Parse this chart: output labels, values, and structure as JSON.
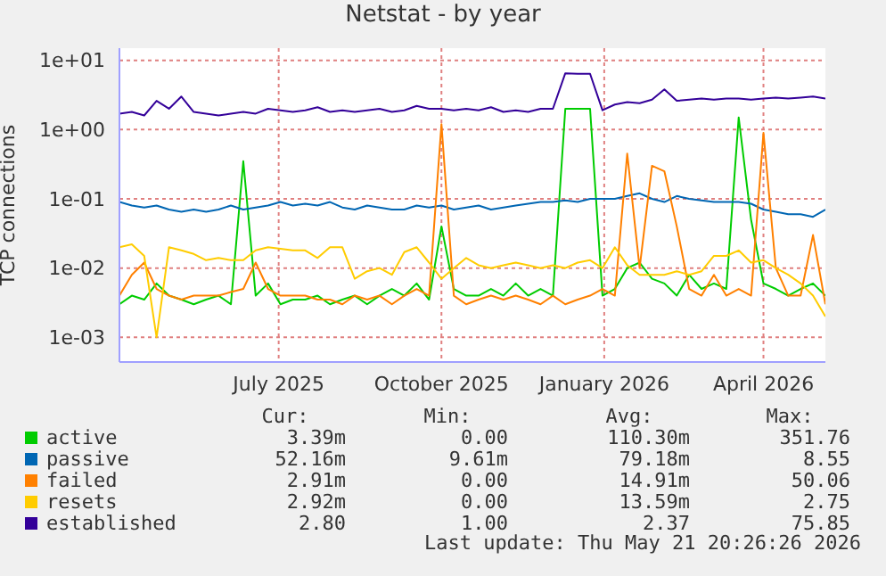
{
  "chart_data": {
    "type": "line",
    "title": "Netstat - by year",
    "ylabel": "TCP connections",
    "log": "y",
    "grid": true,
    "legend": "bottom",
    "marker": "none",
    "line_style": "solid",
    "x": [
      "2025-04-17",
      "2025-04-24",
      "2025-05-01",
      "2025-05-08",
      "2025-05-15",
      "2025-05-22",
      "2025-05-29",
      "2025-06-05",
      "2025-06-12",
      "2025-06-19",
      "2025-06-26",
      "2025-07-03",
      "2025-07-10",
      "2025-07-17",
      "2025-07-24",
      "2025-07-31",
      "2025-08-07",
      "2025-08-14",
      "2025-08-21",
      "2025-08-28",
      "2025-09-04",
      "2025-09-11",
      "2025-09-18",
      "2025-09-25",
      "2025-10-02",
      "2025-10-09",
      "2025-10-16",
      "2025-10-23",
      "2025-10-30",
      "2025-11-06",
      "2025-11-13",
      "2025-11-20",
      "2025-11-27",
      "2025-12-04",
      "2025-12-11",
      "2025-12-18",
      "2025-12-25",
      "2026-01-01",
      "2026-01-08",
      "2026-01-15",
      "2026-01-22",
      "2026-01-29",
      "2026-02-05",
      "2026-02-12",
      "2026-02-19",
      "2026-02-26",
      "2026-03-05",
      "2026-03-12",
      "2026-03-19",
      "2026-03-26",
      "2026-04-02",
      "2026-04-09",
      "2026-04-16",
      "2026-04-23",
      "2026-04-30",
      "2026-05-07",
      "2026-05-14",
      "2026-05-21"
    ],
    "xlim": [
      "2025-04-17",
      "2026-05-21"
    ],
    "xticks": [
      {
        "value": "2025-07-16",
        "label": "July 2025"
      },
      {
        "value": "2025-10-16",
        "label": "October 2025"
      },
      {
        "value": "2026-01-16",
        "label": "January 2026"
      },
      {
        "value": "2026-04-16",
        "label": "April 2026"
      }
    ],
    "ylim": [
      0.00044,
      15
    ],
    "yticks": [
      {
        "value": 0.001,
        "label": "1e-03"
      },
      {
        "value": 0.01,
        "label": "1e-02"
      },
      {
        "value": 0.1,
        "label": "1e-01"
      },
      {
        "value": 1,
        "label": "1e+00"
      },
      {
        "value": 10,
        "label": "1e+01"
      }
    ],
    "series": [
      {
        "name": "active",
        "color": "#00cc00",
        "values": [
          0.003,
          0.004,
          0.0035,
          0.006,
          0.004,
          0.0035,
          0.003,
          0.0035,
          0.004,
          0.003,
          0.35,
          0.004,
          0.006,
          0.003,
          0.0035,
          0.0035,
          0.004,
          0.003,
          0.0035,
          0.004,
          0.003,
          0.004,
          0.005,
          0.004,
          0.006,
          0.0035,
          0.04,
          0.005,
          0.004,
          0.004,
          0.005,
          0.004,
          0.006,
          0.004,
          0.005,
          0.004,
          2.0,
          2.0,
          2.0,
          0.004,
          0.005,
          0.01,
          0.012,
          0.007,
          0.006,
          0.004,
          0.008,
          0.005,
          0.006,
          0.005,
          1.5,
          0.05,
          0.006,
          0.005,
          0.004,
          0.005,
          0.006,
          0.004
        ]
      },
      {
        "name": "passive",
        "color": "#0066b3",
        "values": [
          0.09,
          0.08,
          0.075,
          0.08,
          0.07,
          0.065,
          0.07,
          0.065,
          0.07,
          0.08,
          0.07,
          0.075,
          0.08,
          0.09,
          0.08,
          0.085,
          0.08,
          0.09,
          0.075,
          0.07,
          0.08,
          0.075,
          0.07,
          0.07,
          0.08,
          0.075,
          0.08,
          0.07,
          0.075,
          0.08,
          0.07,
          0.075,
          0.08,
          0.085,
          0.09,
          0.09,
          0.095,
          0.09,
          0.1,
          0.1,
          0.1,
          0.11,
          0.12,
          0.1,
          0.09,
          0.11,
          0.1,
          0.095,
          0.09,
          0.09,
          0.09,
          0.085,
          0.07,
          0.065,
          0.06,
          0.06,
          0.055,
          0.07
        ]
      },
      {
        "name": "failed",
        "color": "#ff8000",
        "values": [
          0.004,
          0.008,
          0.012,
          0.005,
          0.004,
          0.0035,
          0.004,
          0.004,
          0.004,
          0.0045,
          0.005,
          0.012,
          0.005,
          0.004,
          0.004,
          0.004,
          0.0035,
          0.0035,
          0.003,
          0.004,
          0.0035,
          0.004,
          0.003,
          0.004,
          0.005,
          0.004,
          1.2,
          0.004,
          0.003,
          0.0035,
          0.004,
          0.0035,
          0.004,
          0.0035,
          0.003,
          0.004,
          0.003,
          0.0035,
          0.004,
          0.005,
          0.004,
          0.45,
          0.01,
          0.3,
          0.25,
          0.04,
          0.005,
          0.004,
          0.008,
          0.004,
          0.005,
          0.004,
          0.9,
          0.01,
          0.004,
          0.004,
          0.03,
          0.003
        ]
      },
      {
        "name": "resets",
        "color": "#ffcc00",
        "values": [
          0.02,
          0.022,
          0.015,
          0.001,
          0.02,
          0.018,
          0.016,
          0.013,
          0.014,
          0.013,
          0.013,
          0.018,
          0.02,
          0.019,
          0.018,
          0.018,
          0.014,
          0.02,
          0.02,
          0.007,
          0.009,
          0.01,
          0.008,
          0.017,
          0.02,
          0.012,
          0.007,
          0.01,
          0.014,
          0.011,
          0.01,
          0.011,
          0.012,
          0.011,
          0.01,
          0.011,
          0.01,
          0.012,
          0.013,
          0.01,
          0.02,
          0.011,
          0.008,
          0.008,
          0.008,
          0.009,
          0.008,
          0.009,
          0.015,
          0.015,
          0.018,
          0.012,
          0.013,
          0.01,
          0.008,
          0.006,
          0.004,
          0.002
        ]
      },
      {
        "name": "established",
        "color": "#330099",
        "values": [
          1.7,
          1.8,
          1.6,
          2.6,
          2.0,
          3.0,
          1.8,
          1.7,
          1.6,
          1.7,
          1.8,
          1.7,
          2.0,
          1.9,
          1.8,
          1.9,
          2.1,
          1.8,
          1.9,
          1.8,
          1.9,
          2.0,
          1.8,
          1.9,
          2.2,
          2.0,
          2.0,
          1.9,
          2.0,
          1.9,
          2.1,
          1.8,
          1.9,
          1.8,
          2.0,
          2.0,
          6.5,
          6.4,
          6.4,
          1.9,
          2.3,
          2.5,
          2.4,
          2.7,
          3.8,
          2.6,
          2.7,
          2.8,
          2.7,
          2.8,
          2.8,
          2.7,
          2.8,
          2.9,
          2.8,
          2.9,
          3.0,
          2.8
        ]
      }
    ],
    "annotations": [
      "Cur:",
      "Min:",
      "Avg:",
      "Max:",
      "3.39m",
      "0.00",
      "110.30m",
      "351.76",
      "52.16m",
      "9.61m",
      "79.18m",
      "8.55",
      "2.91m",
      "0.00",
      "14.91m",
      "50.06",
      "2.92m",
      "0.00",
      "13.59m",
      "2.75",
      "2.80",
      "1.00",
      "2.37",
      "75.85",
      "Last update: Thu May 21 20:26:26 2026"
    ]
  }
}
